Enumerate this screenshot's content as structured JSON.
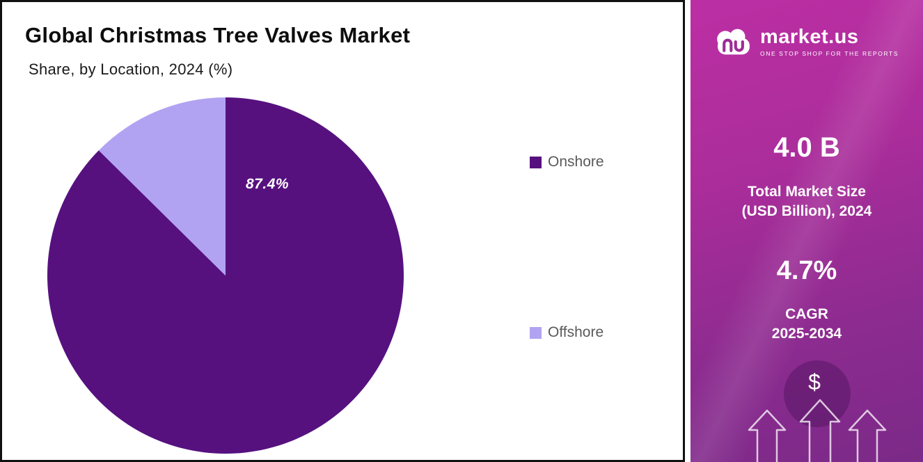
{
  "chart_data": {
    "type": "pie",
    "title": "Global Christmas Tree Valves Market",
    "subtitle": "Share, by Location, 2024 (%)",
    "categories": [
      "Onshore",
      "Offshore"
    ],
    "values": [
      87.4,
      12.6
    ],
    "colors": [
      "#56117f",
      "#b2a3f2"
    ],
    "data_label": "87.4%",
    "start_angle": "top",
    "direction": "clockwise",
    "legend_position": "right",
    "grid": false
  },
  "sidebar": {
    "logo": {
      "text": "market.us",
      "tagline": "ONE STOP SHOP FOR THE REPORTS"
    },
    "stats": [
      {
        "value": "4.0 B",
        "label_line1": "Total Market Size",
        "label_line2": "(USD Billion), 2024"
      },
      {
        "value": "4.7%",
        "label_line1": "CAGR",
        "label_line2": "2025-2034"
      }
    ],
    "dollar_symbol": "$"
  },
  "colors": {
    "pie_onshore": "#56117f",
    "pie_offshore": "#b2a3f2",
    "panel_gradient_top": "#bc2fa4",
    "panel_gradient_bottom": "#7b2a88",
    "legend_text": "#595959",
    "title_text": "#0d0d0d"
  }
}
